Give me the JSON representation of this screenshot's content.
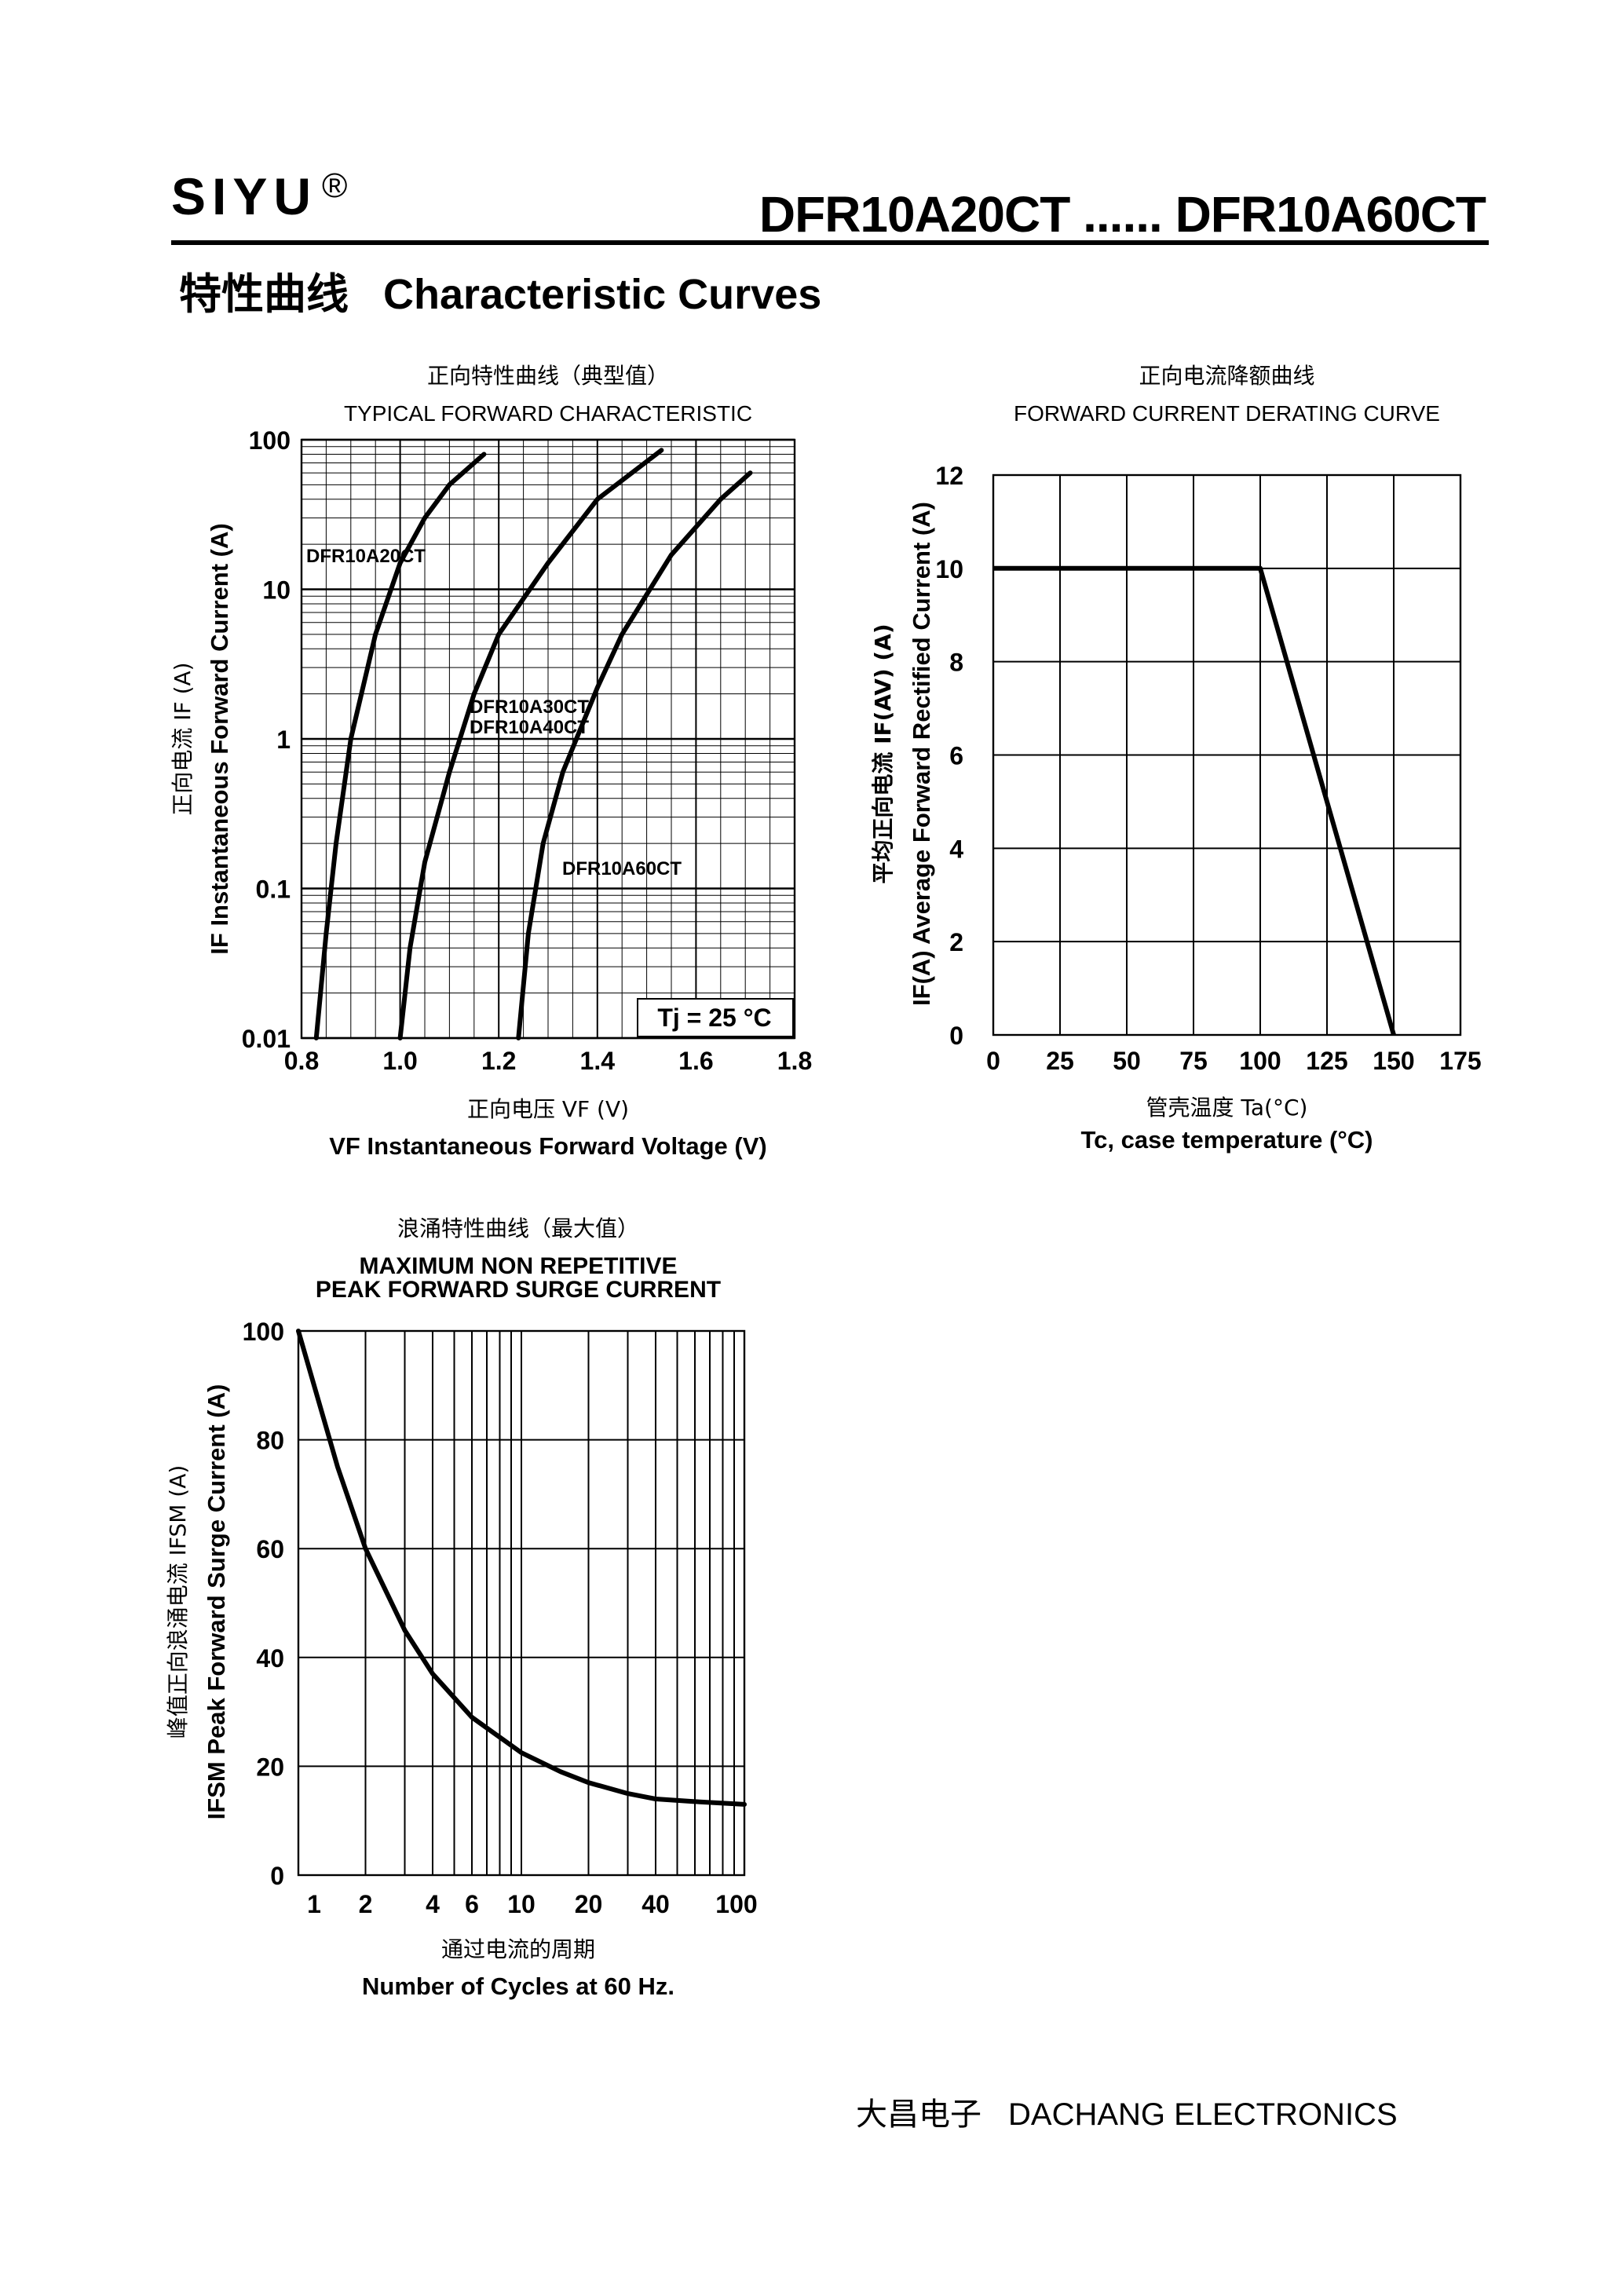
{
  "header": {
    "brand": "SIYU",
    "registered_mark": "®",
    "part_range": "DFR10A20CT ...... DFR10A60CT"
  },
  "section_title": {
    "cn": "特性曲线",
    "en": "Characteristic Curves"
  },
  "footer": {
    "cn": "大昌电子",
    "en": "DACHANG ELECTRONICS"
  },
  "chart_data": [
    {
      "type": "line",
      "title_cn": "正向特性曲线（典型值）",
      "title": "TYPICAL FORWARD CHARACTERISTIC",
      "xlabel_cn": "正向电压",
      "xlabel_symbol": "VF (V)",
      "xlabel": "VF Instantaneous Forward Voltage (V)",
      "ylabel_cn": "正向电流",
      "ylabel_symbol": "IF (A)",
      "ylabel": "IF Instantaneous Forward Current (A)",
      "xlim": [
        0.8,
        1.8
      ],
      "ylim": [
        0.01,
        100
      ],
      "yscale": "log",
      "grid": true,
      "xticks": [
        "0.8",
        "1.0",
        "1.2",
        "1.4",
        "1.6",
        "1.8"
      ],
      "yticks": [
        "0.01",
        "0.1",
        "1",
        "10",
        "100"
      ],
      "annotation": "Tj = 25 °C",
      "series": [
        {
          "name": "DFR10A20CT",
          "x": [
            0.83,
            0.85,
            0.87,
            0.9,
            0.95,
            1.0,
            1.05,
            1.1,
            1.17
          ],
          "y": [
            0.01,
            0.05,
            0.2,
            1.0,
            5.0,
            15,
            30,
            50,
            80
          ]
        },
        {
          "name": "DFR10A30CT DFR10A40CT",
          "x": [
            1.0,
            1.02,
            1.05,
            1.1,
            1.15,
            1.2,
            1.3,
            1.4,
            1.53
          ],
          "y": [
            0.01,
            0.04,
            0.15,
            0.6,
            2.0,
            5.0,
            15,
            40,
            85
          ]
        },
        {
          "name": "DFR10A60CT",
          "x": [
            1.24,
            1.26,
            1.29,
            1.33,
            1.4,
            1.45,
            1.55,
            1.65,
            1.71
          ],
          "y": [
            0.01,
            0.05,
            0.2,
            0.6,
            2.2,
            5.0,
            17,
            40,
            60
          ]
        }
      ]
    },
    {
      "type": "line",
      "title_cn": "正向电流降额曲线",
      "title": "FORWARD CURRENT DERATING CURVE",
      "xlabel_cn": "管壳温度",
      "xlabel_symbol": "Ta(°C)",
      "xlabel": "Tc, case temperature (°C)",
      "ylabel_cn": "平均正向电流",
      "ylabel_symbol": "IF(AV) (A)",
      "ylabel": "IF(A) Average Forward Rectified Current (A)",
      "xlim": [
        0,
        175
      ],
      "ylim": [
        0,
        12
      ],
      "grid": true,
      "xticks": [
        "0",
        "25",
        "50",
        "75",
        "100",
        "125",
        "150",
        "175"
      ],
      "yticks": [
        "0",
        "2",
        "4",
        "6",
        "8",
        "10",
        "12"
      ],
      "series": [
        {
          "x": [
            0,
            100,
            150
          ],
          "y": [
            10,
            10,
            0
          ]
        }
      ]
    },
    {
      "type": "line",
      "title_cn": "浪涌特性曲线（最大值）",
      "title": "MAXIMUM NON REPETITIVE PEAK FORWARD SURGE CURRENT",
      "xlabel_cn": "通过电流的周期",
      "xlabel": "Number  of  Cycles at 60 Hz.",
      "ylabel_cn": "峰值正向浪涌电流",
      "ylabel_symbol": "IFSM (A)",
      "ylabel": "IFSM Peak Forward Surge Current (A)",
      "xlim": [
        1,
        100
      ],
      "xscale": "log",
      "ylim": [
        0,
        100
      ],
      "grid": true,
      "xticks": [
        "1",
        "2",
        "4",
        "6",
        "10",
        "20",
        "40",
        "100"
      ],
      "yticks": [
        "0",
        "20",
        "40",
        "60",
        "80",
        "100"
      ],
      "series": [
        {
          "x": [
            1,
            1.5,
            2,
            3,
            4,
            6,
            10,
            15,
            20,
            30,
            40,
            60,
            100
          ],
          "y": [
            100,
            75,
            60,
            45,
            37,
            29,
            22.5,
            19,
            17,
            15,
            14,
            13.5,
            13
          ]
        }
      ]
    }
  ]
}
